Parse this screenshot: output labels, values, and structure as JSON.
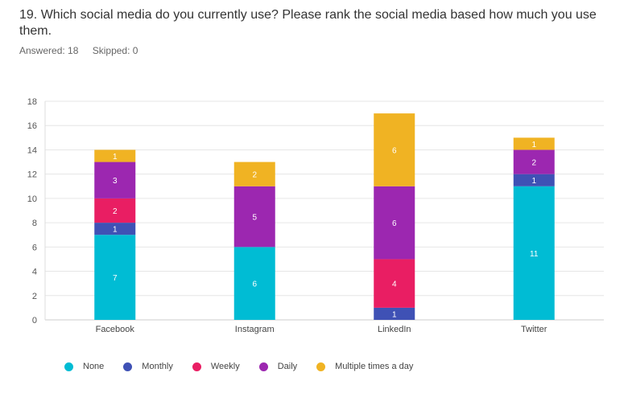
{
  "question": {
    "title": "19. Which social media do you currently use? Please rank the social media based how much you use them.",
    "answered_label": "Answered: 18",
    "skipped_label": "Skipped: 0"
  },
  "chart_data": {
    "type": "bar",
    "stacked": true,
    "categories": [
      "Facebook",
      "Instagram",
      "LinkedIn",
      "Twitter"
    ],
    "series": [
      {
        "name": "None",
        "color": "#00bcd4",
        "values": [
          7,
          6,
          0,
          11
        ]
      },
      {
        "name": "Monthly",
        "color": "#3f51b5",
        "values": [
          1,
          0,
          1,
          1
        ]
      },
      {
        "name": "Weekly",
        "color": "#e91e63",
        "values": [
          2,
          0,
          4,
          0
        ]
      },
      {
        "name": "Daily",
        "color": "#9c27b0",
        "values": [
          3,
          5,
          6,
          2
        ]
      },
      {
        "name": "Multiple times a day",
        "color": "#f0b323",
        "values": [
          1,
          2,
          6,
          1
        ]
      }
    ],
    "yticks": [
      0,
      2,
      4,
      6,
      8,
      10,
      12,
      14,
      16,
      18
    ],
    "ylim": [
      0,
      18
    ],
    "title": "",
    "xlabel": "",
    "ylabel": "",
    "grid": true,
    "legend_position": "bottom"
  }
}
